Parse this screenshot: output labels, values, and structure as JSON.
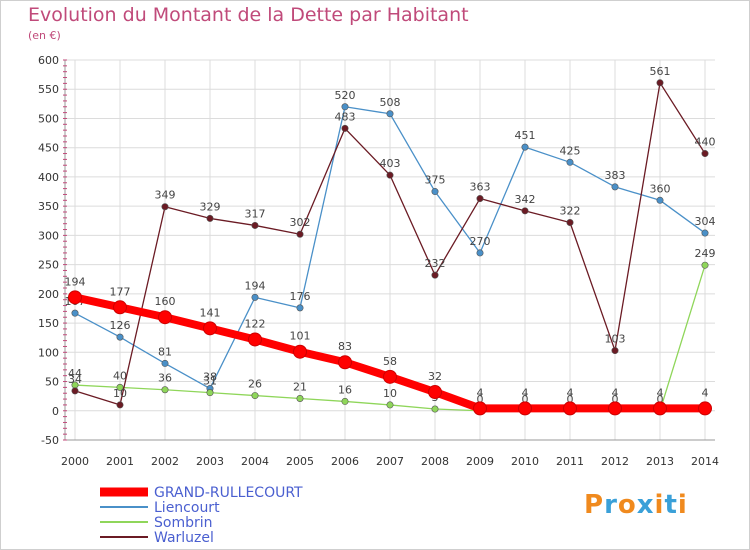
{
  "chart_data": {
    "type": "line",
    "title": "Evolution du Montant de la Dette par Habitant",
    "unit_label": "(en €)",
    "x": [
      "2000",
      "2001",
      "2002",
      "2003",
      "2004",
      "2005",
      "2006",
      "2007",
      "2008",
      "2009",
      "2010",
      "2011",
      "2012",
      "2013",
      "2014"
    ],
    "ylim": [
      -50,
      600
    ],
    "yticks": [
      -50,
      0,
      50,
      100,
      150,
      200,
      250,
      300,
      350,
      400,
      450,
      500,
      550,
      600
    ],
    "grid": true,
    "legend_position": "bottom-left",
    "series": [
      {
        "name": "Liencourt",
        "color": "#4a90c8",
        "values": [
          167,
          126,
          81,
          38,
          194,
          176,
          520,
          508,
          375,
          270,
          451,
          425,
          383,
          360,
          304
        ]
      },
      {
        "name": "Sombrin",
        "color": "#8fd65a",
        "values": [
          44,
          40,
          36,
          31,
          26,
          21,
          16,
          10,
          3,
          0,
          0,
          0,
          0,
          0,
          249
        ]
      },
      {
        "name": "Warluzel",
        "color": "#6b1b24",
        "values": [
          34,
          10,
          349,
          329,
          317,
          302,
          483,
          403,
          232,
          363,
          342,
          322,
          103,
          561,
          440
        ]
      },
      {
        "name": "GRAND-RULLECOURT",
        "color": "#ff0000",
        "values": [
          194,
          177,
          160,
          141,
          122,
          101,
          83,
          58,
          32,
          4,
          4,
          4,
          4,
          4,
          4
        ]
      }
    ]
  },
  "legend": {
    "items": [
      {
        "name": "GRAND-RULLECOURT",
        "color": "#ff0000"
      },
      {
        "name": "Liencourt",
        "color": "#4a90c8"
      },
      {
        "name": "Sombrin",
        "color": "#8fd65a"
      },
      {
        "name": "Warluzel",
        "color": "#6b1b24"
      }
    ]
  },
  "logo": {
    "text": "Proxiti",
    "letters": [
      "P",
      "r",
      "o",
      "x",
      "i",
      "t",
      "i"
    ],
    "colors": [
      "#f08a1e",
      "#3aa0d8",
      "#f08a1e",
      "#3aa0d8",
      "#f08a1e",
      "#3aa0d8",
      "#f08a1e"
    ]
  }
}
